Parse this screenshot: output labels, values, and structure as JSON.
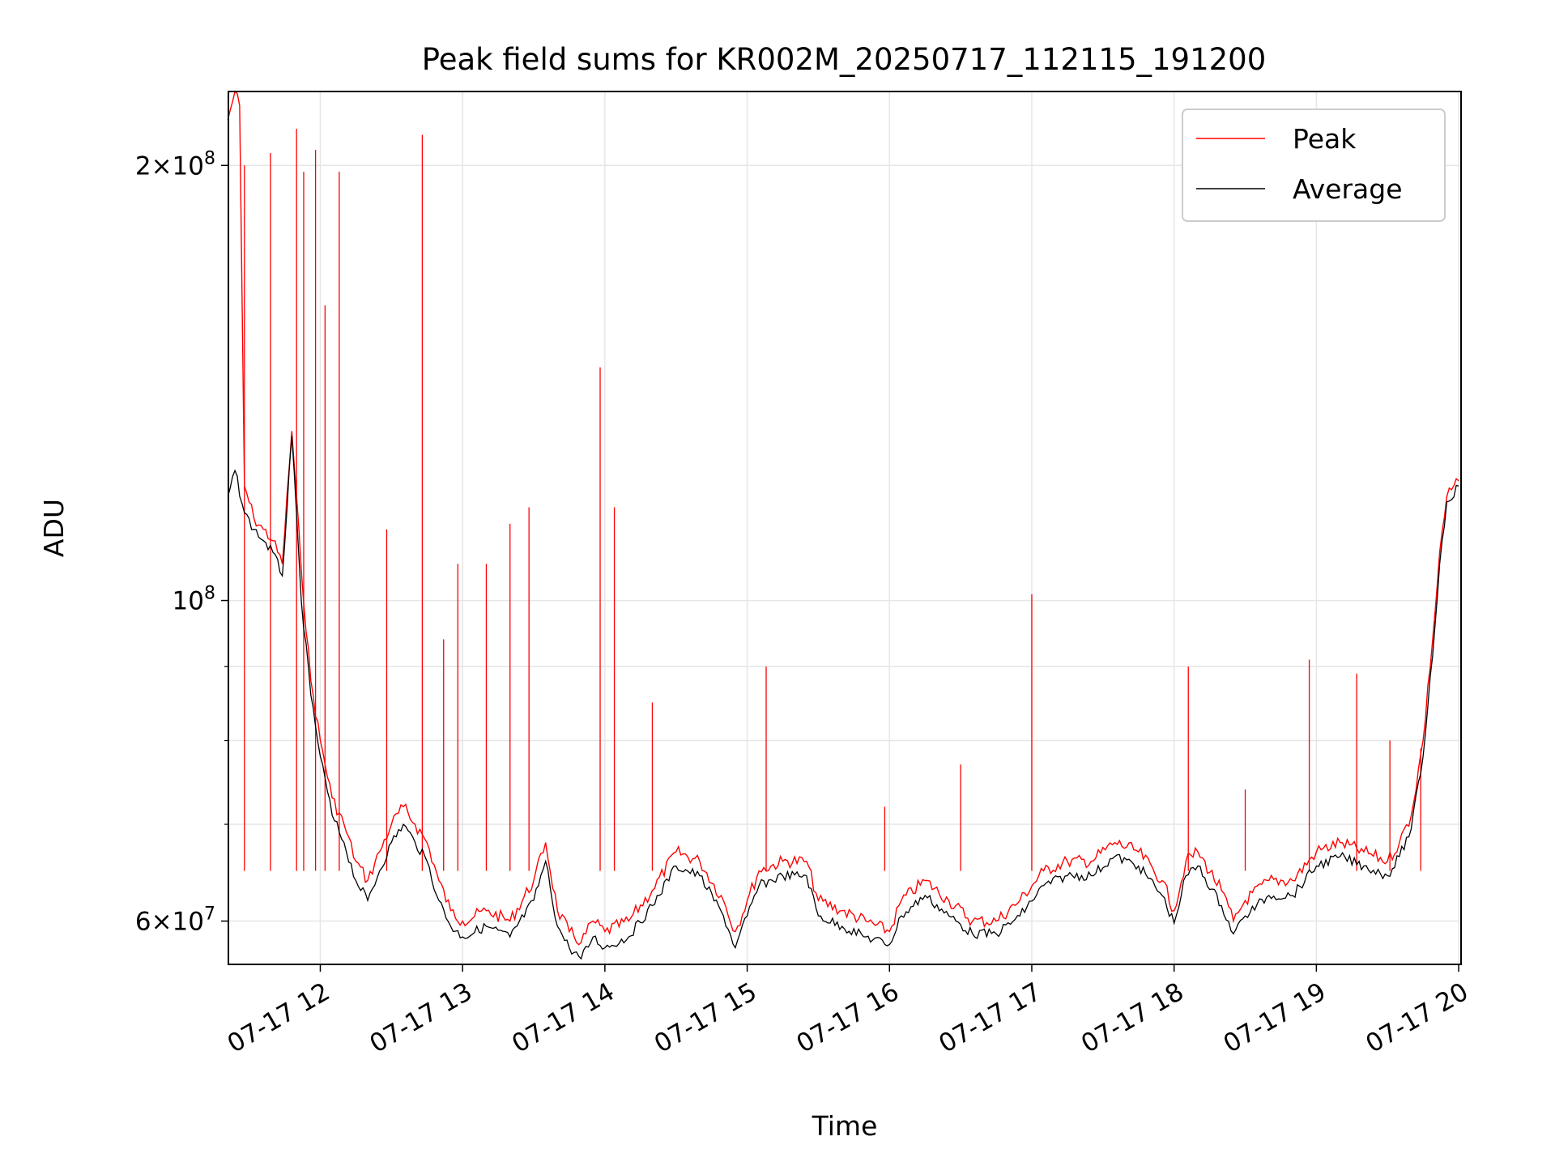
{
  "chart_data": {
    "type": "line",
    "title": "Peak field sums for KR002M_20250717_112115_191200",
    "xlabel": "Time",
    "ylabel": "ADU",
    "yscale": "log",
    "xlim": [
      "2025-07-17T11:21:15",
      "2025-07-17T20:01:00"
    ],
    "ylim": [
      56000000,
      225000000
    ],
    "x_ticks": [
      {
        "t": "2025-07-17T12:00",
        "label": "07-17 12"
      },
      {
        "t": "2025-07-17T13:00",
        "label": "07-17 13"
      },
      {
        "t": "2025-07-17T14:00",
        "label": "07-17 14"
      },
      {
        "t": "2025-07-17T15:00",
        "label": "07-17 15"
      },
      {
        "t": "2025-07-17T16:00",
        "label": "07-17 16"
      },
      {
        "t": "2025-07-17T17:00",
        "label": "07-17 17"
      },
      {
        "t": "2025-07-17T18:00",
        "label": "07-17 18"
      },
      {
        "t": "2025-07-17T19:00",
        "label": "07-17 19"
      },
      {
        "t": "2025-07-17T20:00",
        "label": "07-17 20"
      }
    ],
    "y_ticks_major": [
      {
        "v": 60000000,
        "mantissa": "6",
        "exp": "7"
      },
      {
        "v": 100000000,
        "mantissa": "",
        "exp": "8"
      },
      {
        "v": 200000000,
        "mantissa": "2",
        "exp": "8"
      }
    ],
    "y_ticks_minor": [
      70000000,
      80000000,
      90000000
    ],
    "grid": true,
    "legend_position": "upper right",
    "colors": {
      "peak": "#ff0000",
      "average": "#000000",
      "grid": "#e6e6e6"
    },
    "series": [
      {
        "name": "Peak",
        "color": "#ff0000",
        "points": [
          [
            "2025-07-17T11:21",
            "215000000"
          ],
          [
            "2025-07-17T11:24",
            "225000000"
          ],
          [
            "2025-07-17T11:26",
            "220000000"
          ],
          [
            "2025-07-17T11:28",
            "120000000"
          ],
          [
            "2025-07-17T11:32",
            "114000000"
          ],
          [
            "2025-07-17T11:36",
            "112000000"
          ],
          [
            "2025-07-17T11:40",
            "110000000"
          ],
          [
            "2025-07-17T11:44",
            "106000000"
          ],
          [
            "2025-07-17T11:48",
            "131000000"
          ],
          [
            "2025-07-17T11:52",
            "105000000"
          ],
          [
            "2025-07-17T11:56",
            "88000000"
          ],
          [
            "2025-07-17T12:00",
            "80000000"
          ],
          [
            "2025-07-17T12:05",
            "73000000"
          ],
          [
            "2025-07-17T12:10",
            "70000000"
          ],
          [
            "2025-07-17T12:15",
            "66000000"
          ],
          [
            "2025-07-17T12:20",
            "64000000"
          ],
          [
            "2025-07-17T12:25",
            "67000000"
          ],
          [
            "2025-07-17T12:30",
            "70000000"
          ],
          [
            "2025-07-17T12:35",
            "72000000"
          ],
          [
            "2025-07-17T12:40",
            "70000000"
          ],
          [
            "2025-07-17T12:45",
            "68000000"
          ],
          [
            "2025-07-17T12:50",
            "64000000"
          ],
          [
            "2025-07-17T12:55",
            "61000000"
          ],
          [
            "2025-07-17T13:00",
            "60000000"
          ],
          [
            "2025-07-17T13:10",
            "61000000"
          ],
          [
            "2025-07-17T13:20",
            "60000000"
          ],
          [
            "2025-07-17T13:30",
            "64000000"
          ],
          [
            "2025-07-17T13:35",
            "68000000"
          ],
          [
            "2025-07-17T13:40",
            "61000000"
          ],
          [
            "2025-07-17T13:45",
            "59000000"
          ],
          [
            "2025-07-17T13:50",
            "58000000"
          ],
          [
            "2025-07-17T13:55",
            "60000000"
          ],
          [
            "2025-07-17T14:00",
            "59000000"
          ],
          [
            "2025-07-17T14:10",
            "60000000"
          ],
          [
            "2025-07-17T14:20",
            "63000000"
          ],
          [
            "2025-07-17T14:30",
            "67000000"
          ],
          [
            "2025-07-17T14:40",
            "66000000"
          ],
          [
            "2025-07-17T14:50",
            "62000000"
          ],
          [
            "2025-07-17T14:55",
            "59000000"
          ],
          [
            "2025-07-17T15:00",
            "62000000"
          ],
          [
            "2025-07-17T15:05",
            "65000000"
          ],
          [
            "2025-07-17T15:15",
            "66000000"
          ],
          [
            "2025-07-17T15:25",
            "66000000"
          ],
          [
            "2025-07-17T15:30",
            "62000000"
          ],
          [
            "2025-07-17T15:40",
            "61000000"
          ],
          [
            "2025-07-17T15:50",
            "60000000"
          ],
          [
            "2025-07-17T16:00",
            "59000000"
          ],
          [
            "2025-07-17T16:05",
            "62000000"
          ],
          [
            "2025-07-17T16:15",
            "64000000"
          ],
          [
            "2025-07-17T16:25",
            "62000000"
          ],
          [
            "2025-07-17T16:35",
            "60000000"
          ],
          [
            "2025-07-17T16:45",
            "60000000"
          ],
          [
            "2025-07-17T16:55",
            "62000000"
          ],
          [
            "2025-07-17T17:05",
            "65000000"
          ],
          [
            "2025-07-17T17:15",
            "66000000"
          ],
          [
            "2025-07-17T17:25",
            "66000000"
          ],
          [
            "2025-07-17T17:35",
            "68000000"
          ],
          [
            "2025-07-17T17:45",
            "67000000"
          ],
          [
            "2025-07-17T17:55",
            "64000000"
          ],
          [
            "2025-07-17T18:00",
            "61000000"
          ],
          [
            "2025-07-17T18:05",
            "66000000"
          ],
          [
            "2025-07-17T18:10",
            "67000000"
          ],
          [
            "2025-07-17T18:20",
            "63000000"
          ],
          [
            "2025-07-17T18:25",
            "60000000"
          ],
          [
            "2025-07-17T18:30",
            "62000000"
          ],
          [
            "2025-07-17T18:40",
            "64000000"
          ],
          [
            "2025-07-17T18:50",
            "64000000"
          ],
          [
            "2025-07-17T19:00",
            "67000000"
          ],
          [
            "2025-07-17T19:10",
            "68000000"
          ],
          [
            "2025-07-17T19:20",
            "67000000"
          ],
          [
            "2025-07-17T19:30",
            "66000000"
          ],
          [
            "2025-07-17T19:35",
            "68000000"
          ],
          [
            "2025-07-17T19:40",
            "71000000"
          ],
          [
            "2025-07-17T19:45",
            "80000000"
          ],
          [
            "2025-07-17T19:50",
            "98000000"
          ],
          [
            "2025-07-17T19:52",
            "108000000"
          ],
          [
            "2025-07-17T19:55",
            "118000000"
          ],
          [
            "2025-07-17T20:00",
            "121000000"
          ]
        ]
      },
      {
        "name": "Average",
        "color": "#000000",
        "points": [
          [
            "2025-07-17T11:21",
            "118000000"
          ],
          [
            "2025-07-17T11:24",
            "123000000"
          ],
          [
            "2025-07-17T11:28",
            "115000000"
          ],
          [
            "2025-07-17T11:32",
            "112000000"
          ],
          [
            "2025-07-17T11:36",
            "110000000"
          ],
          [
            "2025-07-17T11:40",
            "108000000"
          ],
          [
            "2025-07-17T11:44",
            "104000000"
          ],
          [
            "2025-07-17T11:48",
            "130000000"
          ],
          [
            "2025-07-17T11:52",
            "100000000"
          ],
          [
            "2025-07-17T11:56",
            "86000000"
          ],
          [
            "2025-07-17T12:00",
            "78000000"
          ],
          [
            "2025-07-17T12:05",
            "71000000"
          ],
          [
            "2025-07-17T12:10",
            "68000000"
          ],
          [
            "2025-07-17T12:15",
            "64000000"
          ],
          [
            "2025-07-17T12:20",
            "62000000"
          ],
          [
            "2025-07-17T12:25",
            "65000000"
          ],
          [
            "2025-07-17T12:30",
            "68000000"
          ],
          [
            "2025-07-17T12:35",
            "70000000"
          ],
          [
            "2025-07-17T12:40",
            "68000000"
          ],
          [
            "2025-07-17T12:45",
            "66000000"
          ],
          [
            "2025-07-17T12:50",
            "62000000"
          ],
          [
            "2025-07-17T12:55",
            "59500000"
          ],
          [
            "2025-07-17T13:00",
            "58500000"
          ],
          [
            "2025-07-17T13:10",
            "59500000"
          ],
          [
            "2025-07-17T13:20",
            "58500000"
          ],
          [
            "2025-07-17T13:30",
            "62000000"
          ],
          [
            "2025-07-17T13:35",
            "66000000"
          ],
          [
            "2025-07-17T13:40",
            "59500000"
          ],
          [
            "2025-07-17T13:45",
            "57500000"
          ],
          [
            "2025-07-17T13:50",
            "56500000"
          ],
          [
            "2025-07-17T13:55",
            "58500000"
          ],
          [
            "2025-07-17T14:00",
            "57500000"
          ],
          [
            "2025-07-17T14:10",
            "58500000"
          ],
          [
            "2025-07-17T14:20",
            "61500000"
          ],
          [
            "2025-07-17T14:30",
            "65500000"
          ],
          [
            "2025-07-17T14:40",
            "64500000"
          ],
          [
            "2025-07-17T14:50",
            "60500000"
          ],
          [
            "2025-07-17T14:55",
            "57500000"
          ],
          [
            "2025-07-17T15:00",
            "60500000"
          ],
          [
            "2025-07-17T15:05",
            "63500000"
          ],
          [
            "2025-07-17T15:15",
            "64500000"
          ],
          [
            "2025-07-17T15:25",
            "64500000"
          ],
          [
            "2025-07-17T15:30",
            "60500000"
          ],
          [
            "2025-07-17T15:40",
            "59500000"
          ],
          [
            "2025-07-17T15:50",
            "58500000"
          ],
          [
            "2025-07-17T16:00",
            "57800000"
          ],
          [
            "2025-07-17T16:05",
            "60500000"
          ],
          [
            "2025-07-17T16:15",
            "62500000"
          ],
          [
            "2025-07-17T16:25",
            "60500000"
          ],
          [
            "2025-07-17T16:35",
            "58800000"
          ],
          [
            "2025-07-17T16:45",
            "58800000"
          ],
          [
            "2025-07-17T16:55",
            "60500000"
          ],
          [
            "2025-07-17T17:05",
            "63500000"
          ],
          [
            "2025-07-17T17:15",
            "64500000"
          ],
          [
            "2025-07-17T17:25",
            "64500000"
          ],
          [
            "2025-07-17T17:35",
            "66500000"
          ],
          [
            "2025-07-17T17:45",
            "65500000"
          ],
          [
            "2025-07-17T17:55",
            "62500000"
          ],
          [
            "2025-07-17T18:00",
            "59800000"
          ],
          [
            "2025-07-17T18:05",
            "64500000"
          ],
          [
            "2025-07-17T18:10",
            "65500000"
          ],
          [
            "2025-07-17T18:20",
            "61500000"
          ],
          [
            "2025-07-17T18:25",
            "58800000"
          ],
          [
            "2025-07-17T18:30",
            "60500000"
          ],
          [
            "2025-07-17T18:40",
            "62500000"
          ],
          [
            "2025-07-17T18:50",
            "62500000"
          ],
          [
            "2025-07-17T19:00",
            "65500000"
          ],
          [
            "2025-07-17T19:10",
            "66500000"
          ],
          [
            "2025-07-17T19:20",
            "65500000"
          ],
          [
            "2025-07-17T19:30",
            "64500000"
          ],
          [
            "2025-07-17T19:35",
            "66500000"
          ],
          [
            "2025-07-17T19:40",
            "69500000"
          ],
          [
            "2025-07-17T19:45",
            "78000000"
          ],
          [
            "2025-07-17T19:50",
            "96000000"
          ],
          [
            "2025-07-17T19:52",
            "106000000"
          ],
          [
            "2025-07-17T19:55",
            "117000000"
          ],
          [
            "2025-07-17T20:00",
            "120000000"
          ]
        ]
      }
    ],
    "spikes": [
      {
        "t": "2025-07-17T11:28",
        "peak": 200000000
      },
      {
        "t": "2025-07-17T11:39",
        "peak": 204000000
      },
      {
        "t": "2025-07-17T11:50",
        "peak": 212000000
      },
      {
        "t": "2025-07-17T11:53",
        "peak": 198000000
      },
      {
        "t": "2025-07-17T11:58",
        "peak": 205000000
      },
      {
        "t": "2025-07-17T12:02",
        "peak": 160000000
      },
      {
        "t": "2025-07-17T12:08",
        "peak": 198000000
      },
      {
        "t": "2025-07-17T12:28",
        "peak": 112000000
      },
      {
        "t": "2025-07-17T12:43",
        "peak": 210000000
      },
      {
        "t": "2025-07-17T12:52",
        "peak": 94000000
      },
      {
        "t": "2025-07-17T12:58",
        "peak": 106000000
      },
      {
        "t": "2025-07-17T13:10",
        "peak": 106000000
      },
      {
        "t": "2025-07-17T13:20",
        "peak": 113000000
      },
      {
        "t": "2025-07-17T13:28",
        "peak": 116000000
      },
      {
        "t": "2025-07-17T13:58",
        "peak": 145000000
      },
      {
        "t": "2025-07-17T14:04",
        "peak": 116000000
      },
      {
        "t": "2025-07-17T14:20",
        "peak": 85000000
      },
      {
        "t": "2025-07-17T15:08",
        "peak": 90000000
      },
      {
        "t": "2025-07-17T15:58",
        "peak": 72000000
      },
      {
        "t": "2025-07-17T16:30",
        "peak": 77000000
      },
      {
        "t": "2025-07-17T17:00",
        "peak": 101000000
      },
      {
        "t": "2025-07-17T18:06",
        "peak": 90000000
      },
      {
        "t": "2025-07-17T18:30",
        "peak": 74000000
      },
      {
        "t": "2025-07-17T18:57",
        "peak": 91000000
      },
      {
        "t": "2025-07-17T19:17",
        "peak": 89000000
      },
      {
        "t": "2025-07-17T19:31",
        "peak": 80000000
      },
      {
        "t": "2025-07-17T19:44",
        "peak": 79000000
      }
    ]
  }
}
